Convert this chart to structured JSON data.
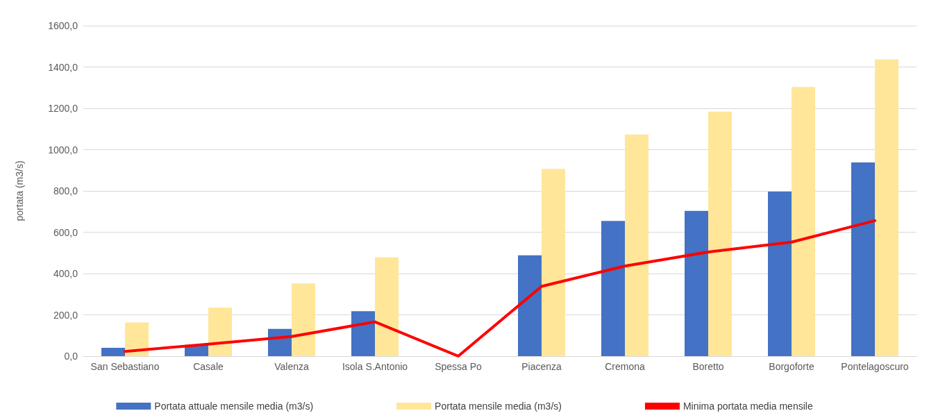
{
  "chart_data": {
    "type": "bar",
    "ylabel": "portata (m3/s)",
    "categories": [
      "San Sebastiano",
      "Casale",
      "Valenza",
      "Isola S.Antonio",
      "Spessa Po",
      "Piacenza",
      "Cremona",
      "Boretto",
      "Borgoforte",
      "Pontelagoscuro"
    ],
    "series": [
      {
        "name": "Portata attuale mensile media (m3/s)",
        "color": "#4472c4",
        "values": [
          40,
          55,
          132,
          218,
          null,
          488,
          655,
          703,
          797,
          938
        ]
      },
      {
        "name": "Portata mensile media (m3/s)",
        "color": "#ffe699",
        "values": [
          163,
          235,
          352,
          478,
          null,
          907,
          1073,
          1184,
          1303,
          1437
        ]
      },
      {
        "name": "Minima portata media mensile",
        "color": "#ff0000",
        "type": "line",
        "marker": "none",
        "values": [
          23,
          58,
          95,
          166,
          0,
          338,
          436,
          504,
          552,
          656
        ]
      }
    ],
    "ylim": [
      0,
      1600
    ],
    "yticks": [
      {
        "value": 0,
        "label": "0,0"
      },
      {
        "value": 200,
        "label": "200,0"
      },
      {
        "value": 400,
        "label": "400,0"
      },
      {
        "value": 600,
        "label": "600,0"
      },
      {
        "value": 800,
        "label": "800,0"
      },
      {
        "value": 1000,
        "label": "1000,0"
      },
      {
        "value": 1200,
        "label": "1200,0"
      },
      {
        "value": 1400,
        "label": "1400,0"
      },
      {
        "value": 1600,
        "label": "1600,0"
      }
    ],
    "grid": "y",
    "legend": "bottom"
  }
}
